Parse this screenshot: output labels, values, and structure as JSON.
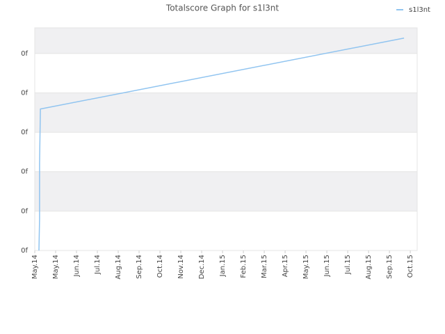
{
  "chart_data": {
    "type": "line",
    "title": "Totalscore Graph for s1l3nt",
    "x": [
      0.2,
      0.23,
      0.23,
      0.27,
      17.7
    ],
    "series": [
      {
        "name": "s1l3nt",
        "color": "#90c4f0",
        "values": [
          0,
          0.8,
          2.21,
          3.59,
          5.39
        ]
      }
    ],
    "xlim": [
      0,
      18.33
    ],
    "xticks": [
      {
        "value": 0,
        "label": "May.14"
      },
      {
        "value": 1,
        "label": "May.14"
      },
      {
        "value": 2,
        "label": "Jun.14"
      },
      {
        "value": 3,
        "label": "Jul.14"
      },
      {
        "value": 4,
        "label": "Aug.14"
      },
      {
        "value": 5,
        "label": "Sep.14"
      },
      {
        "value": 6,
        "label": "Oct.14"
      },
      {
        "value": 7,
        "label": "Nov.14"
      },
      {
        "value": 8,
        "label": "Dec.14"
      },
      {
        "value": 9,
        "label": "Jan.15"
      },
      {
        "value": 10,
        "label": "Feb.15"
      },
      {
        "value": 11,
        "label": "Mar.15"
      },
      {
        "value": 12,
        "label": "Apr.15"
      },
      {
        "value": 13,
        "label": "May.15"
      },
      {
        "value": 14,
        "label": "Jun.15"
      },
      {
        "value": 15,
        "label": "Jul.15"
      },
      {
        "value": 16,
        "label": "Aug.15"
      },
      {
        "value": 17,
        "label": "Sep.15"
      },
      {
        "value": 18,
        "label": "Oct.15"
      }
    ],
    "ylim": [
      0,
      5.65
    ],
    "yticks": [
      {
        "value": 0,
        "label": "0f"
      },
      {
        "value": 1,
        "label": "0f"
      },
      {
        "value": 2,
        "label": "0f"
      },
      {
        "value": 3,
        "label": "0f"
      },
      {
        "value": 4,
        "label": "0f"
      },
      {
        "value": 5,
        "label": "0f"
      }
    ],
    "grid": true,
    "legend": "top-right"
  }
}
